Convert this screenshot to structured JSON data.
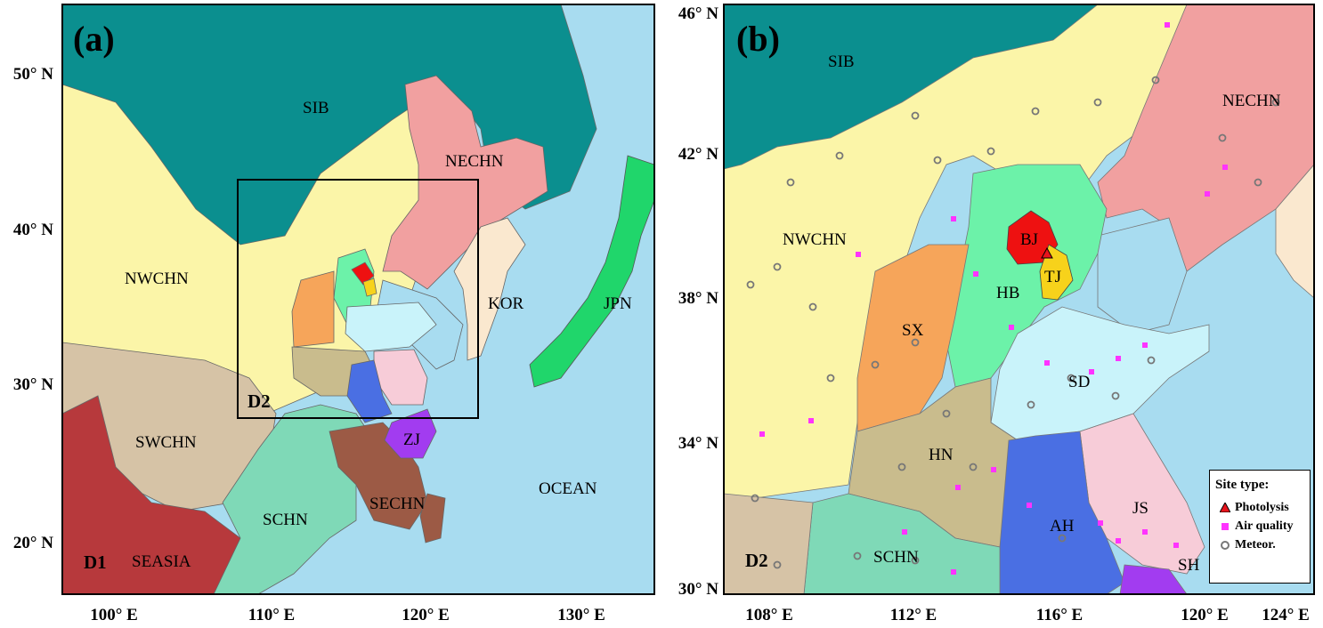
{
  "panel_a": {
    "letter": "(a)",
    "lat_ticks": [
      "50° N",
      "40° N",
      "30° N",
      "20° N"
    ],
    "lon_ticks": [
      "100° E",
      "110° E",
      "120° E",
      "130° E"
    ],
    "regions": [
      "SIB",
      "NECHN",
      "NWCHN",
      "KOR",
      "JPN",
      "SWCHN",
      "ZJ",
      "SECHN",
      "OCEAN",
      "SCHN",
      "SEASIA"
    ],
    "domain_outer": "D1",
    "domain_inner": "D2"
  },
  "panel_b": {
    "letter": "(b)",
    "lat_ticks": [
      "46° N",
      "42° N",
      "38° N",
      "34° N",
      "30° N"
    ],
    "lon_ticks": [
      "108° E",
      "112° E",
      "116° E",
      "120° E",
      "124° E"
    ],
    "regions": [
      "SIB",
      "NECHN",
      "NWCHN",
      "BJ",
      "TJ",
      "HB",
      "SX",
      "SD",
      "HN",
      "JS",
      "AH",
      "SCHN",
      "SH"
    ],
    "domain": "D2"
  },
  "legend": {
    "title": "Site type:",
    "items": [
      {
        "label": "Photolysis",
        "symbol": "triangle",
        "color": "#e8141c"
      },
      {
        "label": "Air quality",
        "symbol": "square",
        "color": "#ff33ff"
      },
      {
        "label": "Meteor.",
        "symbol": "circle",
        "color": "#777777"
      }
    ]
  },
  "colors": {
    "SIB": "#0b8f8f",
    "NWCHN": "#fbf5a8",
    "NECHN": "#f1a0a0",
    "KOR": "#fae8cf",
    "JPN": "#20d66b",
    "SWCHN": "#d6c3a6",
    "SEASIA": "#b7393c",
    "SCHN": "#7fd9b7",
    "SECHN": "#9c5a45",
    "ZJ": "#a23cf0",
    "OCEAN": "#a8dcf0",
    "BJ": "#ee1111",
    "TJ": "#f7d21b",
    "HB": "#6cf2a9",
    "SX": "#f6a55a",
    "SD": "#c9f3fa",
    "HN": "#c9bc8d",
    "JS": "#f7ccd8",
    "AH": "#4a6fe3",
    "SH": "#a23cf0"
  }
}
